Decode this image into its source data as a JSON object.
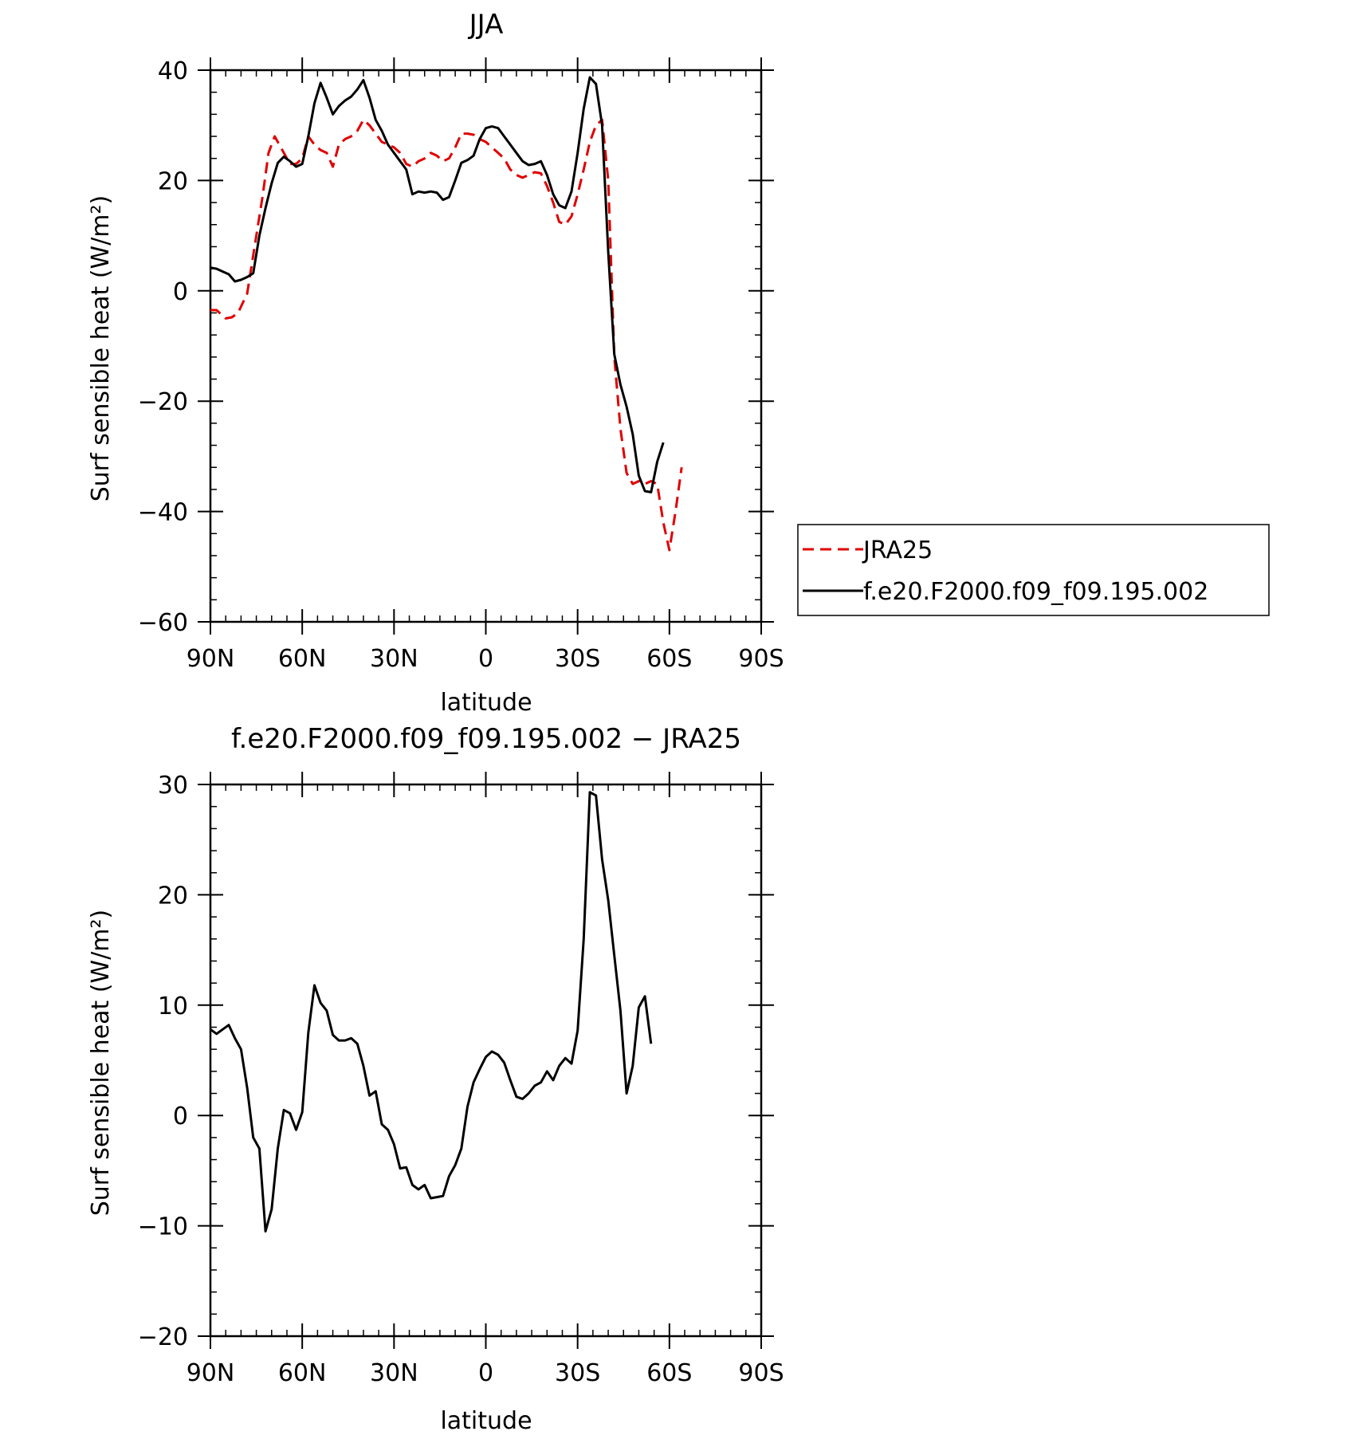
{
  "chart_data": [
    {
      "type": "line",
      "title": "JJA",
      "xlabel": "latitude",
      "ylabel": "Surf sensible heat (W/m²)",
      "xlim": [
        90,
        -90
      ],
      "ylim": [
        -60,
        40
      ],
      "xticks": [
        {
          "value": 90,
          "label": "90N"
        },
        {
          "value": 60,
          "label": "60N"
        },
        {
          "value": 30,
          "label": "30N"
        },
        {
          "value": 0,
          "label": "0"
        },
        {
          "value": -30,
          "label": "30S"
        },
        {
          "value": -60,
          "label": "60S"
        },
        {
          "value": -90,
          "label": "90S"
        }
      ],
      "yticks": [
        {
          "value": 40,
          "label": "40"
        },
        {
          "value": 20,
          "label": "20"
        },
        {
          "value": 0,
          "label": "0"
        },
        {
          "value": -20,
          "label": "−20"
        },
        {
          "value": -40,
          "label": "−40"
        },
        {
          "value": -60,
          "label": "−60"
        }
      ],
      "legend_position": "right",
      "series": [
        {
          "name": "JRA25",
          "color": "#e00000",
          "dash": "dashed",
          "points": [
            [
              90,
              -3.5
            ],
            [
              88,
              -3.5
            ],
            [
              85,
              -5.0
            ],
            [
              83,
              -4.8
            ],
            [
              81,
              -4.0
            ],
            [
              78,
              -0.5
            ],
            [
              75,
              10
            ],
            [
              73,
              17
            ],
            [
              71,
              25
            ],
            [
              69,
              28
            ],
            [
              67,
              26
            ],
            [
              64,
              23
            ],
            [
              62,
              23
            ],
            [
              60,
              24
            ],
            [
              58,
              28
            ],
            [
              56,
              26.5
            ],
            [
              54,
              25.5
            ],
            [
              52,
              25
            ],
            [
              50,
              22.5
            ],
            [
              48,
              26.5
            ],
            [
              46,
              27.5
            ],
            [
              44,
              28
            ],
            [
              42,
              29
            ],
            [
              40,
              31
            ],
            [
              38,
              30
            ],
            [
              36,
              28.5
            ],
            [
              34,
              27
            ],
            [
              32,
              26.5
            ],
            [
              30,
              26
            ],
            [
              28,
              25
            ],
            [
              26,
              23
            ],
            [
              24,
              22.5
            ],
            [
              22,
              23.5
            ],
            [
              20,
              24
            ],
            [
              18,
              25
            ],
            [
              16,
              24.5
            ],
            [
              14,
              23.5
            ],
            [
              12,
              24
            ],
            [
              10,
              26
            ],
            [
              8,
              28.5
            ],
            [
              6,
              28.5
            ],
            [
              4,
              28.3
            ],
            [
              2,
              27.5
            ],
            [
              0,
              27
            ],
            [
              -2,
              26
            ],
            [
              -4,
              25
            ],
            [
              -6,
              24
            ],
            [
              -8,
              22
            ],
            [
              -10,
              21
            ],
            [
              -12,
              20.5
            ],
            [
              -14,
              21
            ],
            [
              -16,
              21.5
            ],
            [
              -18,
              21.3
            ],
            [
              -20,
              19
            ],
            [
              -22,
              16
            ],
            [
              -24,
              12.5
            ],
            [
              -26,
              12
            ],
            [
              -28,
              13.5
            ],
            [
              -30,
              17.5
            ],
            [
              -32,
              22
            ],
            [
              -34,
              27
            ],
            [
              -36,
              30
            ],
            [
              -38,
              31
            ],
            [
              -40,
              20
            ],
            [
              -42,
              -12
            ],
            [
              -44,
              -25
            ],
            [
              -46,
              -33
            ],
            [
              -48,
              -35
            ],
            [
              -50,
              -34.5
            ],
            [
              -52,
              -35
            ],
            [
              -54,
              -34.5
            ],
            [
              -56,
              -35
            ],
            [
              -58,
              -42
            ],
            [
              -60,
              -47
            ],
            [
              -62,
              -40
            ],
            [
              -64,
              -32
            ]
          ]
        },
        {
          "name": "f.e20.F2000.f09_f09.195.002",
          "color": "#000000",
          "dash": "solid",
          "points": [
            [
              90,
              4.2
            ],
            [
              88,
              4
            ],
            [
              86,
              3.5
            ],
            [
              84,
              3
            ],
            [
              82,
              1.7
            ],
            [
              80,
              2
            ],
            [
              78,
              2.5
            ],
            [
              76,
              3.2
            ],
            [
              74,
              10
            ],
            [
              72,
              15
            ],
            [
              70,
              19.5
            ],
            [
              68,
              23.2
            ],
            [
              66,
              24.3
            ],
            [
              64,
              23.5
            ],
            [
              62,
              22.5
            ],
            [
              60,
              23
            ],
            [
              58,
              28
            ],
            [
              56,
              34
            ],
            [
              54,
              37.7
            ],
            [
              52,
              35
            ],
            [
              50,
              32
            ],
            [
              48,
              33.5
            ],
            [
              46,
              34.5
            ],
            [
              44,
              35.2
            ],
            [
              42,
              36.5
            ],
            [
              40,
              38.2
            ],
            [
              38,
              35
            ],
            [
              36,
              31
            ],
            [
              34,
              29
            ],
            [
              32,
              26.5
            ],
            [
              30,
              25
            ],
            [
              28,
              23.5
            ],
            [
              26,
              22
            ],
            [
              24,
              17.5
            ],
            [
              22,
              18
            ],
            [
              20,
              17.8
            ],
            [
              18,
              18
            ],
            [
              16,
              17.8
            ],
            [
              14,
              16.5
            ],
            [
              12,
              17
            ],
            [
              10,
              20
            ],
            [
              8,
              23.2
            ],
            [
              6,
              23.7
            ],
            [
              4,
              24.5
            ],
            [
              2,
              27.5
            ],
            [
              0,
              29.5
            ],
            [
              -2,
              29.8
            ],
            [
              -4,
              29.5
            ],
            [
              -6,
              28
            ],
            [
              -8,
              26.5
            ],
            [
              -10,
              25
            ],
            [
              -12,
              23.5
            ],
            [
              -14,
              22.8
            ],
            [
              -16,
              23
            ],
            [
              -18,
              23.5
            ],
            [
              -20,
              21
            ],
            [
              -22,
              17.5
            ],
            [
              -24,
              15.5
            ],
            [
              -26,
              15
            ],
            [
              -28,
              18
            ],
            [
              -30,
              25
            ],
            [
              -32,
              33
            ],
            [
              -34,
              38.7
            ],
            [
              -36,
              37.5
            ],
            [
              -38,
              30
            ],
            [
              -40,
              7
            ],
            [
              -42,
              -11.5
            ],
            [
              -44,
              -17
            ],
            [
              -46,
              -21
            ],
            [
              -48,
              -26
            ],
            [
              -50,
              -33.5
            ],
            [
              -52,
              -36.3
            ],
            [
              -54,
              -36.5
            ],
            [
              -56,
              -31
            ],
            [
              -58,
              -27.5
            ]
          ]
        }
      ]
    },
    {
      "type": "line",
      "title": "f.e20.F2000.f09_f09.195.002 − JRA25",
      "xlabel": "latitude",
      "ylabel": "Surf sensible heat (W/m²)",
      "xlim": [
        90,
        -90
      ],
      "ylim": [
        -20,
        30
      ],
      "xticks": [
        {
          "value": 90,
          "label": "90N"
        },
        {
          "value": 60,
          "label": "60N"
        },
        {
          "value": 30,
          "label": "30N"
        },
        {
          "value": 0,
          "label": "0"
        },
        {
          "value": -30,
          "label": "30S"
        },
        {
          "value": -60,
          "label": "60S"
        },
        {
          "value": -90,
          "label": "90S"
        }
      ],
      "yticks": [
        {
          "value": 30,
          "label": "30"
        },
        {
          "value": 20,
          "label": "20"
        },
        {
          "value": 10,
          "label": "10"
        },
        {
          "value": 0,
          "label": "0"
        },
        {
          "value": -10,
          "label": "−10"
        },
        {
          "value": -20,
          "label": "−20"
        }
      ],
      "series": [
        {
          "color": "#000000",
          "dash": "solid",
          "points": [
            [
              90,
              7.8
            ],
            [
              88,
              7.4
            ],
            [
              86,
              7.8
            ],
            [
              84,
              8.2
            ],
            [
              82,
              7
            ],
            [
              80,
              6
            ],
            [
              78,
              2.5
            ],
            [
              76,
              -2
            ],
            [
              74,
              -3
            ],
            [
              72,
              -10.5
            ],
            [
              70,
              -8.5
            ],
            [
              68,
              -3
            ],
            [
              66,
              0.5
            ],
            [
              64,
              0.2
            ],
            [
              62,
              -1.3
            ],
            [
              60,
              0.3
            ],
            [
              58,
              7.5
            ],
            [
              56,
              11.8
            ],
            [
              54,
              10.2
            ],
            [
              52,
              9.5
            ],
            [
              50,
              7.3
            ],
            [
              48,
              6.8
            ],
            [
              46,
              6.8
            ],
            [
              44,
              7
            ],
            [
              42,
              6.5
            ],
            [
              40,
              4.5
            ],
            [
              38,
              1.8
            ],
            [
              36,
              2.2
            ],
            [
              34,
              -0.8
            ],
            [
              32,
              -1.3
            ],
            [
              30,
              -2.6
            ],
            [
              28,
              -4.8
            ],
            [
              26,
              -4.7
            ],
            [
              24,
              -6.3
            ],
            [
              22,
              -6.7
            ],
            [
              20,
              -6.3
            ],
            [
              18,
              -7.5
            ],
            [
              16,
              -7.4
            ],
            [
              14,
              -7.3
            ],
            [
              12,
              -5.5
            ],
            [
              10,
              -4.5
            ],
            [
              8,
              -3
            ],
            [
              6,
              0.8
            ],
            [
              4,
              3
            ],
            [
              2,
              4.2
            ],
            [
              0,
              5.3
            ],
            [
              -2,
              5.8
            ],
            [
              -4,
              5.5
            ],
            [
              -6,
              4.8
            ],
            [
              -8,
              3.2
            ],
            [
              -10,
              1.7
            ],
            [
              -12,
              1.5
            ],
            [
              -14,
              2
            ],
            [
              -16,
              2.7
            ],
            [
              -18,
              3
            ],
            [
              -20,
              4
            ],
            [
              -22,
              3.2
            ],
            [
              -24,
              4.5
            ],
            [
              -26,
              5.2
            ],
            [
              -28,
              4.7
            ],
            [
              -30,
              7.7
            ],
            [
              -32,
              16
            ],
            [
              -34,
              29.3
            ],
            [
              -36,
              29
            ],
            [
              -38,
              23.2
            ],
            [
              -40,
              19.5
            ],
            [
              -42,
              14.5
            ],
            [
              -44,
              9.5
            ],
            [
              -46,
              2
            ],
            [
              -48,
              4.5
            ],
            [
              -50,
              9.8
            ],
            [
              -52,
              10.8
            ],
            [
              -54,
              6.5
            ]
          ]
        }
      ]
    }
  ]
}
